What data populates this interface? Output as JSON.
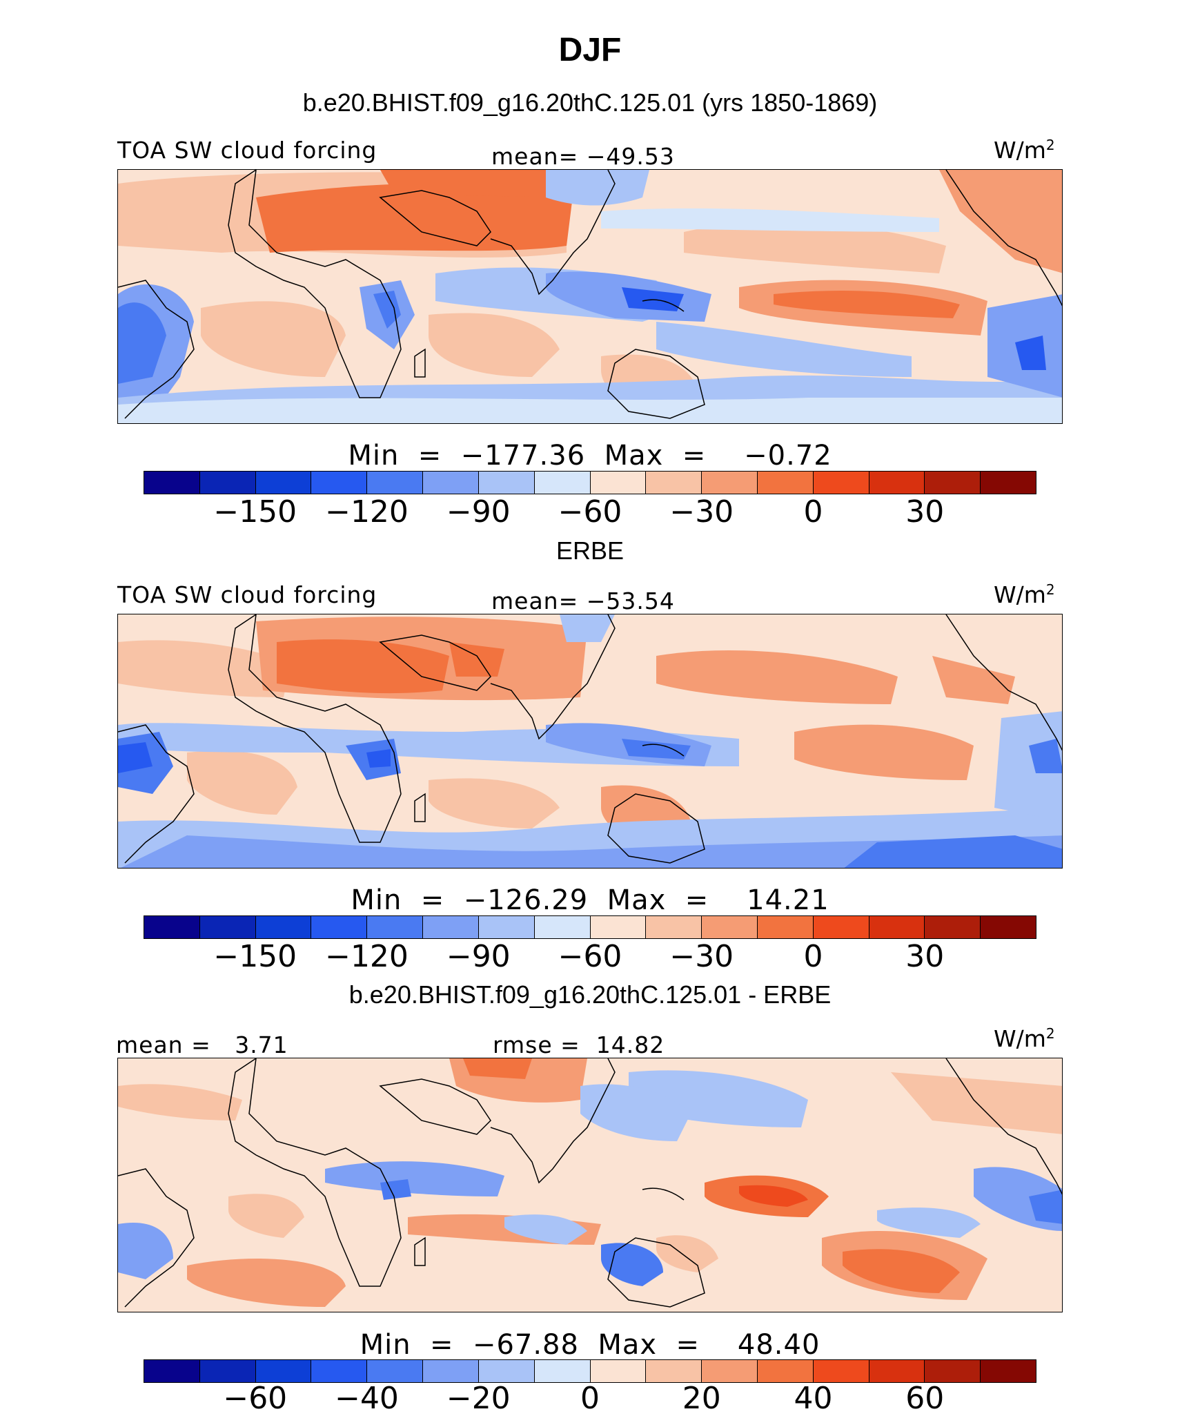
{
  "title": "DJF",
  "panel1": {
    "header": "b.e20.BHIST.f09_g16.20thC.125.01 (yrs 1850-1869)",
    "left_label": "TOA SW cloud forcing",
    "center_label": "mean= −49.53",
    "units": "W/m",
    "units_exp": "2",
    "min_label": "Min",
    "min_value": "−177.36",
    "max_label": "Max",
    "max_value": "−0.72"
  },
  "panel2": {
    "header": "ERBE",
    "left_label": "TOA SW cloud forcing",
    "center_label": "mean= −53.54",
    "units": "W/m",
    "units_exp": "2",
    "min_label": "Min",
    "min_value": "−126.29",
    "max_label": "Max",
    "max_value": "14.21"
  },
  "panel3": {
    "header": "b.e20.BHIST.f09_g16.20thC.125.01 - ERBE",
    "left_label": "mean =   3.71",
    "center_label": "rmse =  14.82",
    "units": "W/m",
    "units_exp": "2",
    "min_label": "Min",
    "min_value": "−67.88",
    "max_label": "Max",
    "max_value": "48.40"
  },
  "colorbar_colors": [
    "#08038c",
    "#0a25b5",
    "#0d3fd6",
    "#2659f0",
    "#4a7af2",
    "#7ea0f5",
    "#a9c3f7",
    "#d6e6fa",
    "#fbe3d3",
    "#f8c3a6",
    "#f59c74",
    "#f2733f",
    "#ee4a1d",
    "#d8310f",
    "#ad1e0a",
    "#850803"
  ],
  "colorbar1_ticks": [
    "−150",
    "−120",
    "−90",
    "−60",
    "−30",
    "0",
    "30"
  ],
  "colorbar2_ticks": [
    "−150",
    "−120",
    "−90",
    "−60",
    "−30",
    "0",
    "30"
  ],
  "colorbar3_ticks": [
    "−60",
    "−40",
    "−20",
    "0",
    "20",
    "40",
    "60"
  ]
}
